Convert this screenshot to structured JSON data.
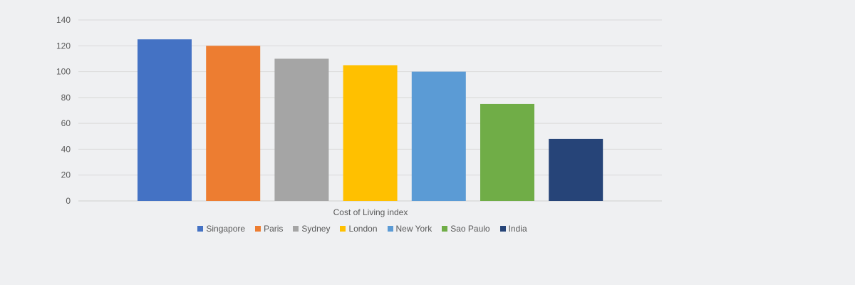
{
  "chart_data": {
    "type": "bar",
    "categories": [
      "Singapore",
      "Paris",
      "Sydney",
      "London",
      "New York",
      "Sao Paulo",
      "India"
    ],
    "values": [
      125,
      120,
      110,
      105,
      100,
      75,
      48
    ],
    "colors": [
      "#4472c4",
      "#ed7d31",
      "#a5a5a5",
      "#ffc000",
      "#5b9bd5",
      "#70ad47",
      "#264478"
    ],
    "title": "",
    "xlabel": "Cost of Living index",
    "ylabel": "",
    "ylim": [
      0,
      140
    ],
    "yticks": [
      0,
      20,
      40,
      60,
      80,
      100,
      120,
      140
    ],
    "grid": true,
    "legend_position": "bottom"
  }
}
